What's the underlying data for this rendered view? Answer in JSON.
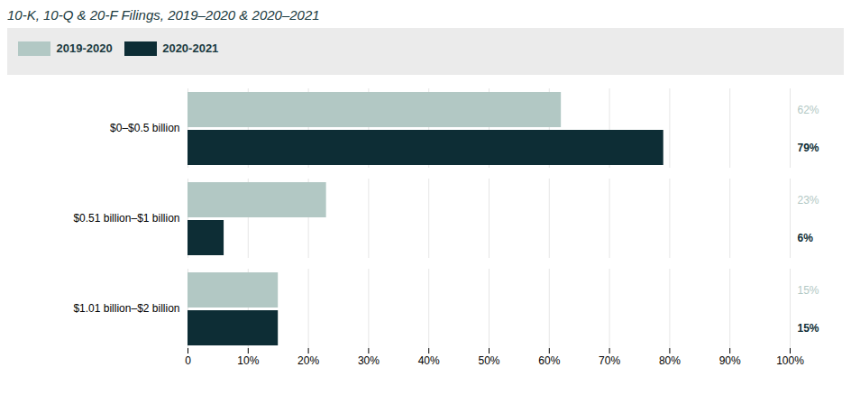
{
  "chart_data": {
    "type": "bar",
    "orientation": "horizontal",
    "title": "10-K, 10-Q & 20-F Filings, 2019–2020 & 2020–2021",
    "categories": [
      "$0–$0.5 billion",
      "$0.51 billion–$1 billion",
      "$1.01 billion–$2 billion"
    ],
    "series": [
      {
        "name": "2019-2020",
        "color": "#b2c8c4",
        "values": [
          62,
          23,
          15
        ],
        "value_labels": [
          "62%",
          "23%",
          "15%"
        ]
      },
      {
        "name": "2020-2021",
        "color": "#0d2d35",
        "values": [
          79,
          6,
          15
        ],
        "value_labels": [
          "79%",
          "6%",
          "15%"
        ]
      }
    ],
    "xlim": [
      0,
      100
    ],
    "xticks": [
      0,
      {
        "value": 10,
        "label": "10%"
      },
      {
        "value": 20,
        "label": "20%"
      },
      {
        "value": 30,
        "label": "30%"
      },
      {
        "value": 40,
        "label": "40%"
      },
      {
        "value": 50,
        "label": "50%"
      },
      {
        "value": 60,
        "label": "60%"
      },
      {
        "value": 70,
        "label": "70%"
      },
      {
        "value": 80,
        "label": "80%"
      },
      {
        "value": 90,
        "label": "90%"
      },
      {
        "value": 100,
        "label": "100%"
      }
    ],
    "grid": true,
    "legend": "top",
    "data_labels": true
  }
}
